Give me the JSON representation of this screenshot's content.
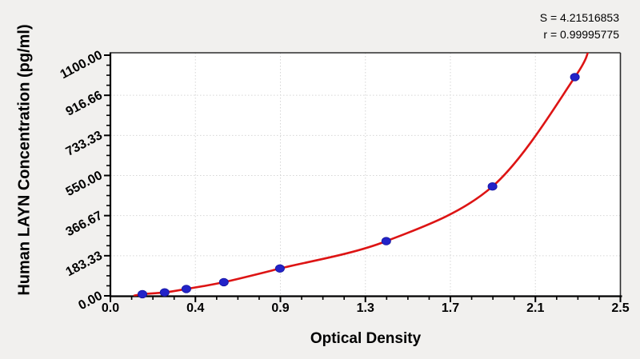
{
  "annotations": {
    "s_label": "S = 4.21516853",
    "r_label": "r = 0.99995775"
  },
  "chart_data": {
    "type": "scatter",
    "title": "",
    "xlabel": "Optical Density",
    "ylabel": "Human LAYN Concentration (pg/ml)",
    "xlim": [
      0,
      2.5
    ],
    "ylim": [
      0,
      1100
    ],
    "x_tick_labels": [
      "0.0",
      "0.4",
      "0.9",
      "1.3",
      "1.7",
      "2.1",
      "2.5"
    ],
    "y_tick_labels": [
      "0.00",
      "183.33",
      "366.67",
      "550.00",
      "733.33",
      "916.66",
      "1100.00"
    ],
    "x_minor_ticks_per_interval": 3,
    "y_minor_ticks_per_interval": 3,
    "grid": "dotted",
    "legend": "none",
    "series": [
      {
        "name": "standard-points",
        "type": "scatter",
        "color": "#2323c8",
        "x": [
          0.157,
          0.266,
          0.372,
          0.556,
          0.831,
          1.352,
          1.873,
          2.277
        ],
        "y": [
          7.8,
          15.6,
          31.25,
          62.5,
          125,
          250,
          500,
          1000
        ]
      },
      {
        "name": "fitted-curve",
        "type": "line",
        "color": "#dd1414"
      }
    ],
    "colors": {
      "background": "#f1f0ee",
      "plot_background": "#ffffff",
      "grid": "#d6d6d6",
      "axis": "#000000",
      "frame": "#2b2b2b",
      "curve": "#dd1414",
      "point": "#2323c8"
    }
  }
}
